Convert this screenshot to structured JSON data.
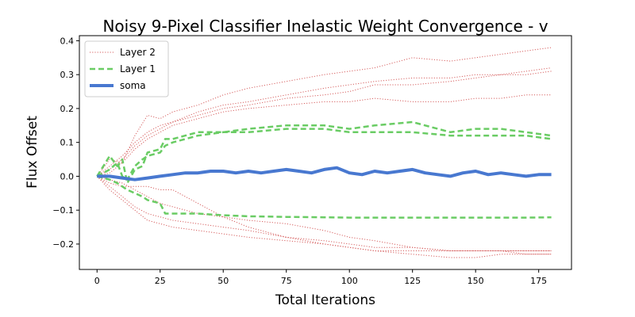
{
  "chart_data": {
    "type": "line",
    "title": "Noisy 9-Pixel Classifier Inelastic Weight Convergence - v",
    "xlabel": "Total Iterations",
    "ylabel": "Flux Offset",
    "xlim": [
      -7,
      188
    ],
    "ylim": [
      -0.275,
      0.415
    ],
    "xticks": [
      0,
      25,
      50,
      75,
      100,
      125,
      150,
      175
    ],
    "yticks": [
      -0.2,
      -0.1,
      0.0,
      0.1,
      0.2,
      0.3,
      0.4
    ],
    "grid": false,
    "legend_position": "top-left",
    "x_range": [
      0,
      180
    ],
    "series": [
      {
        "name": "Layer 2",
        "style": "dotted",
        "color": "#d65f5f",
        "width": 1,
        "traces": [
          {
            "x": [
              0,
              5,
              10,
              15,
              20,
              25,
              30,
              40,
              50,
              60,
              75,
              90,
              100,
              110,
              125,
              140,
              150,
              160,
              170,
              180
            ],
            "y": [
              0,
              0.05,
              0.04,
              0.12,
              0.18,
              0.17,
              0.19,
              0.21,
              0.24,
              0.26,
              0.28,
              0.3,
              0.31,
              0.32,
              0.35,
              0.34,
              0.35,
              0.36,
              0.37,
              0.38
            ]
          },
          {
            "x": [
              0,
              5,
              10,
              15,
              20,
              25,
              30,
              40,
              50,
              60,
              75,
              90,
              100,
              110,
              125,
              140,
              150,
              160,
              170,
              180
            ],
            "y": [
              0,
              0.03,
              0.06,
              0.1,
              0.13,
              0.15,
              0.16,
              0.19,
              0.21,
              0.22,
              0.24,
              0.26,
              0.27,
              0.28,
              0.29,
              0.29,
              0.3,
              0.3,
              0.3,
              0.31
            ]
          },
          {
            "x": [
              0,
              5,
              10,
              15,
              20,
              25,
              30,
              40,
              50,
              60,
              75,
              90,
              100,
              110,
              125,
              140,
              150,
              160,
              170,
              180
            ],
            "y": [
              0,
              0.02,
              0.05,
              0.09,
              0.12,
              0.14,
              0.16,
              0.18,
              0.2,
              0.21,
              0.23,
              0.24,
              0.25,
              0.27,
              0.27,
              0.28,
              0.29,
              0.3,
              0.31,
              0.32
            ]
          },
          {
            "x": [
              0,
              5,
              10,
              15,
              20,
              25,
              30,
              40,
              50,
              60,
              75,
              90,
              100,
              110,
              125,
              140,
              150,
              160,
              170,
              180
            ],
            "y": [
              0,
              0.01,
              0.04,
              0.08,
              0.11,
              0.13,
              0.15,
              0.17,
              0.19,
              0.2,
              0.21,
              0.22,
              0.22,
              0.23,
              0.22,
              0.22,
              0.23,
              0.23,
              0.24,
              0.24
            ]
          },
          {
            "x": [
              0,
              5,
              10,
              15,
              20,
              25,
              30,
              40,
              50,
              60,
              75,
              90,
              100,
              110,
              125,
              140,
              150,
              160,
              170,
              180
            ],
            "y": [
              0,
              -0.04,
              -0.07,
              -0.1,
              -0.13,
              -0.14,
              -0.15,
              -0.16,
              -0.17,
              -0.18,
              -0.19,
              -0.2,
              -0.21,
              -0.22,
              -0.22,
              -0.22,
              -0.22,
              -0.22,
              -0.22,
              -0.22
            ]
          },
          {
            "x": [
              0,
              5,
              10,
              15,
              20,
              25,
              30,
              40,
              50,
              60,
              75,
              90,
              100,
              110,
              125,
              140,
              150,
              160,
              170,
              180
            ],
            "y": [
              0,
              -0.03,
              -0.06,
              -0.09,
              -0.11,
              -0.12,
              -0.13,
              -0.14,
              -0.15,
              -0.16,
              -0.18,
              -0.19,
              -0.2,
              -0.21,
              -0.21,
              -0.22,
              -0.22,
              -0.22,
              -0.23,
              -0.23
            ]
          },
          {
            "x": [
              0,
              5,
              10,
              15,
              20,
              25,
              30,
              40,
              50,
              60,
              75,
              90,
              100,
              110,
              125,
              140,
              150,
              160,
              170,
              180
            ],
            "y": [
              0,
              -0.02,
              -0.03,
              -0.03,
              -0.03,
              -0.04,
              -0.04,
              -0.08,
              -0.12,
              -0.15,
              -0.18,
              -0.2,
              -0.21,
              -0.22,
              -0.23,
              -0.24,
              -0.24,
              -0.23,
              -0.23,
              -0.23
            ]
          },
          {
            "x": [
              0,
              5,
              10,
              15,
              20,
              25,
              30,
              40,
              50,
              60,
              75,
              90,
              100,
              110,
              125,
              140,
              150,
              160,
              170,
              180
            ],
            "y": [
              0,
              -0.01,
              -0.02,
              -0.04,
              -0.06,
              -0.08,
              -0.09,
              -0.11,
              -0.12,
              -0.13,
              -0.14,
              -0.16,
              -0.18,
              -0.19,
              -0.21,
              -0.22,
              -0.22,
              -0.22,
              -0.22,
              -0.22
            ]
          }
        ]
      },
      {
        "name": "Layer 1",
        "style": "dashed",
        "color": "#6acc64",
        "width": 2.5,
        "traces": [
          {
            "x": [
              0,
              5,
              8,
              10,
              12,
              15,
              18,
              20,
              25,
              27,
              30,
              35,
              40,
              50,
              60,
              75,
              90,
              100,
              110,
              125,
              140,
              150,
              160,
              170,
              180
            ],
            "y": [
              0,
              0.06,
              0.03,
              0.05,
              -0.02,
              0.02,
              0.03,
              0.07,
              0.08,
              0.11,
              0.11,
              0.12,
              0.13,
              0.13,
              0.14,
              0.15,
              0.15,
              0.14,
              0.15,
              0.16,
              0.13,
              0.14,
              0.14,
              0.13,
              0.12
            ]
          },
          {
            "x": [
              0,
              5,
              8,
              10,
              12,
              15,
              18,
              20,
              25,
              27,
              30,
              35,
              40,
              50,
              60,
              75,
              90,
              100,
              110,
              125,
              140,
              150,
              160,
              170,
              180
            ],
            "y": [
              0,
              0.02,
              0.04,
              0.0,
              -0.01,
              0.03,
              0.05,
              0.06,
              0.07,
              0.09,
              0.1,
              0.11,
              0.12,
              0.13,
              0.13,
              0.14,
              0.14,
              0.13,
              0.13,
              0.13,
              0.12,
              0.12,
              0.12,
              0.12,
              0.11
            ]
          },
          {
            "x": [
              0,
              5,
              8,
              10,
              12,
              15,
              18,
              20,
              25,
              27,
              30,
              35,
              40,
              50,
              60,
              75,
              90,
              100,
              110,
              125,
              140,
              150,
              160,
              170,
              180
            ],
            "y": [
              0,
              -0.01,
              -0.02,
              -0.03,
              -0.04,
              -0.05,
              -0.06,
              -0.07,
              -0.08,
              -0.11,
              -0.11,
              -0.11,
              -0.11,
              -0.115,
              -0.118,
              -0.12,
              -0.121,
              -0.122,
              -0.122,
              -0.122,
              -0.122,
              -0.122,
              -0.122,
              -0.122,
              -0.121
            ]
          }
        ]
      },
      {
        "name": "soma",
        "style": "solid",
        "color": "#4878d0",
        "width": 4,
        "traces": [
          {
            "x": [
              0,
              5,
              10,
              15,
              20,
              25,
              30,
              35,
              40,
              45,
              50,
              55,
              60,
              65,
              70,
              75,
              80,
              85,
              90,
              95,
              100,
              105,
              110,
              115,
              120,
              125,
              130,
              135,
              140,
              145,
              150,
              155,
              160,
              165,
              170,
              175,
              180
            ],
            "y": [
              0,
              0.0,
              -0.005,
              -0.01,
              -0.005,
              0.0,
              0.005,
              0.01,
              0.01,
              0.015,
              0.015,
              0.01,
              0.015,
              0.01,
              0.015,
              0.02,
              0.015,
              0.01,
              0.02,
              0.025,
              0.01,
              0.005,
              0.015,
              0.01,
              0.015,
              0.02,
              0.01,
              0.005,
              0.0,
              0.01,
              0.015,
              0.005,
              0.01,
              0.005,
              0.0,
              0.005,
              0.005
            ]
          }
        ]
      }
    ]
  }
}
